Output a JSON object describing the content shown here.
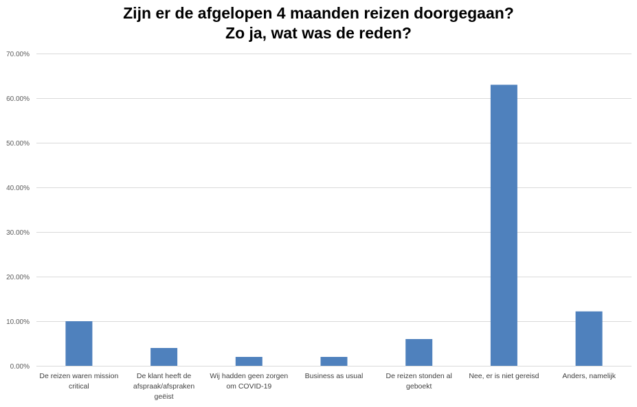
{
  "chart_data": {
    "type": "bar",
    "title": [
      "Zijn er de afgelopen 4 maanden reizen doorgegaan?",
      "Zo ja, wat was de reden?"
    ],
    "xlabel": "",
    "ylabel": "",
    "categories": [
      [
        "De reizen waren mission",
        "critical"
      ],
      [
        "De klant heeft de",
        "afspraak/afspraken",
        "geëist"
      ],
      [
        "Wij hadden geen zorgen",
        "om COVID-19"
      ],
      [
        "Business as usual"
      ],
      [
        "De reizen stonden al",
        "geboekt"
      ],
      [
        "Nee, er is niet gereisd"
      ],
      [
        "Anders, namelijk"
      ]
    ],
    "values": [
      10.0,
      4.0,
      2.0,
      2.0,
      6.0,
      63.0,
      12.2
    ],
    "value_unit": "percent",
    "ylim": [
      0,
      70
    ],
    "ytick_labels": [
      "0.00%",
      "10.00%",
      "20.00%",
      "30.00%",
      "40.00%",
      "50.00%",
      "60.00%",
      "70.00%"
    ],
    "ytick_values": [
      0,
      10,
      20,
      30,
      40,
      50,
      60,
      70
    ],
    "grid": true,
    "legend": "none",
    "colors": {
      "bar": "#4f81bd",
      "grid": "#d9d9d9",
      "axis_text": "#595959"
    }
  }
}
